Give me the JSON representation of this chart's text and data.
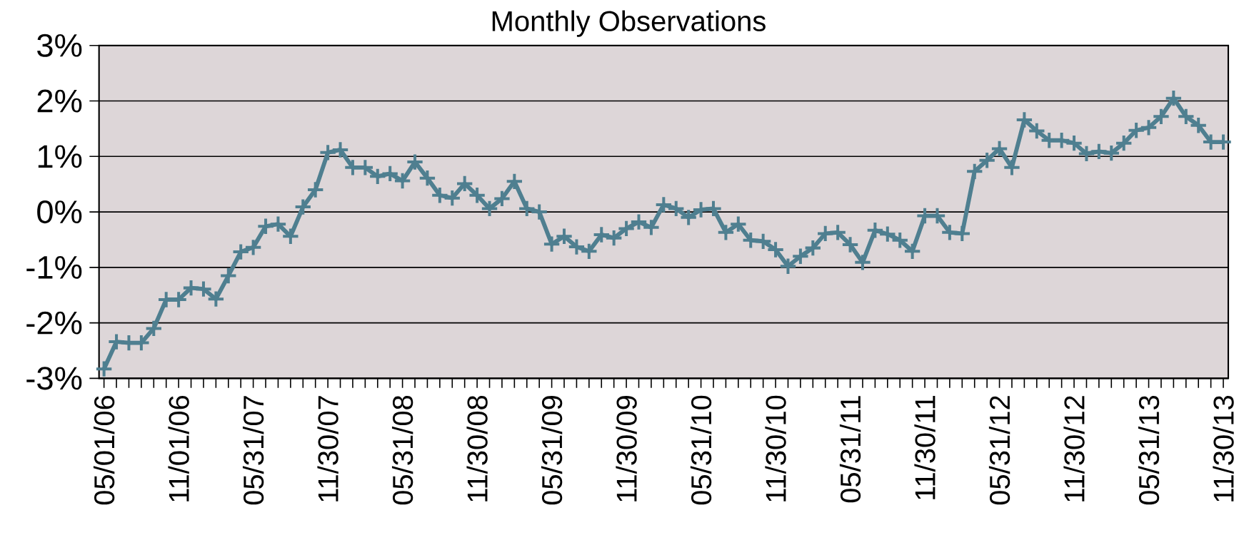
{
  "chart_data": {
    "type": "line",
    "title": "Monthly Observations",
    "categories": [
      "05/01/06",
      null,
      null,
      null,
      null,
      null,
      "11/01/06",
      null,
      null,
      null,
      null,
      null,
      "05/31/07",
      null,
      null,
      null,
      null,
      null,
      "11/30/07",
      null,
      null,
      null,
      null,
      null,
      "05/31/08",
      null,
      null,
      null,
      null,
      null,
      "11/30/08",
      null,
      null,
      null,
      null,
      null,
      "05/31/09",
      null,
      null,
      null,
      null,
      null,
      "11/30/09",
      null,
      null,
      null,
      null,
      null,
      "05/31/10",
      null,
      null,
      null,
      null,
      null,
      "11/30/10",
      null,
      null,
      null,
      null,
      null,
      "05/31/11",
      null,
      null,
      null,
      null,
      null,
      "11/30/11",
      null,
      null,
      null,
      null,
      null,
      "05/31/12",
      null,
      null,
      null,
      null,
      null,
      "11/30/12",
      null,
      null,
      null,
      null,
      null,
      "05/31/13",
      null,
      null,
      null,
      null,
      null,
      "11/30/13"
    ],
    "series": [
      {
        "color": "#4f7f90",
        "values": [
          -2.83,
          -2.34,
          -2.36,
          -2.36,
          -2.1,
          -1.58,
          -1.58,
          -1.37,
          -1.39,
          -1.57,
          -1.15,
          -0.72,
          -0.64,
          -0.26,
          -0.22,
          -0.44,
          0.09,
          0.4,
          1.07,
          1.12,
          0.8,
          0.8,
          0.64,
          0.69,
          0.56,
          0.9,
          0.61,
          0.3,
          0.25,
          0.51,
          0.3,
          0.06,
          0.24,
          0.55,
          0.06,
          0.0,
          -0.58,
          -0.44,
          -0.63,
          -0.71,
          -0.41,
          -0.47,
          -0.3,
          -0.18,
          -0.28,
          0.13,
          0.06,
          -0.1,
          0.04,
          0.06,
          -0.37,
          -0.22,
          -0.51,
          -0.53,
          -0.68,
          -0.98,
          -0.8,
          -0.65,
          -0.39,
          -0.37,
          -0.59,
          -0.91,
          -0.33,
          -0.4,
          -0.51,
          -0.71,
          -0.07,
          -0.07,
          -0.37,
          -0.39,
          0.73,
          0.93,
          1.14,
          0.8,
          1.66,
          1.46,
          1.29,
          1.29,
          1.24,
          1.05,
          1.09,
          1.06,
          1.24,
          1.47,
          1.52,
          1.72,
          2.05,
          1.72,
          1.56,
          1.26,
          1.26
        ]
      }
    ],
    "ylim": [
      -3,
      3
    ],
    "yticks": [
      {
        "value": -3,
        "label": "-3%"
      },
      {
        "value": -2,
        "label": "-2%"
      },
      {
        "value": -1,
        "label": "-1%"
      },
      {
        "value": 0,
        "label": "0%"
      },
      {
        "value": 1,
        "label": "1%"
      },
      {
        "value": 2,
        "label": "2%"
      },
      {
        "value": 3,
        "label": "3%"
      }
    ],
    "grid": "y",
    "marker": "cross",
    "line_style": "solid"
  }
}
